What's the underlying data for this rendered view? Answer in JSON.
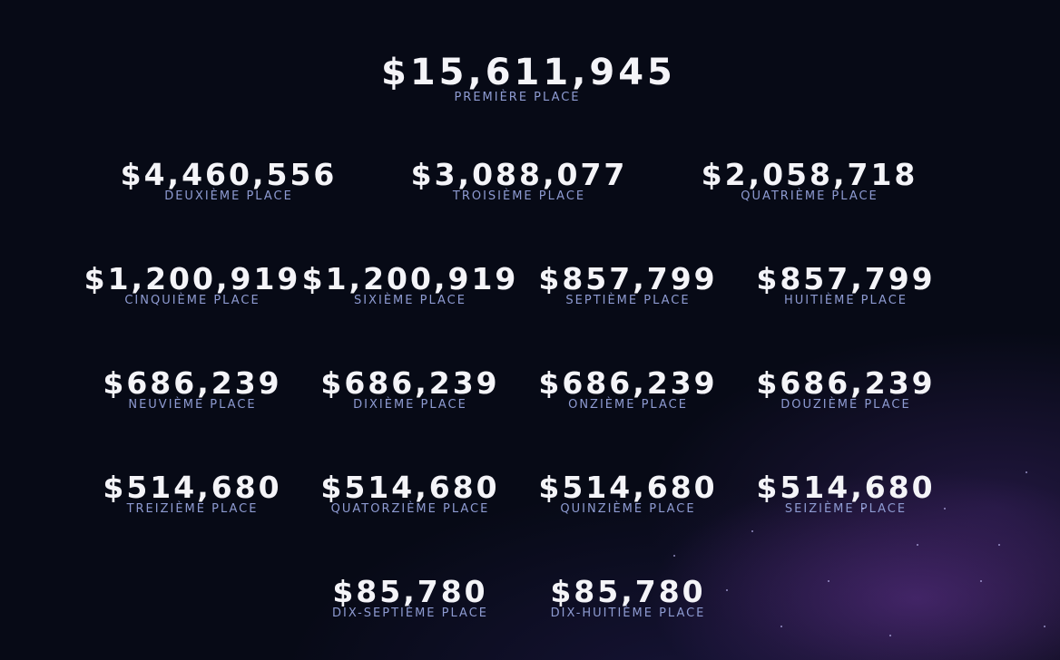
{
  "rows": [
    [
      {
        "amount": "$15,611,945",
        "label": "PREMIÈRE PLACE"
      }
    ],
    [
      {
        "amount": "$4,460,556",
        "label": "DEUXIÈME PLACE"
      },
      {
        "amount": "$3,088,077",
        "label": "TROISIÈME PLACE"
      },
      {
        "amount": "$2,058,718",
        "label": "QUATRIÈME PLACE"
      }
    ],
    [
      {
        "amount": "$1,200,919",
        "label": "CINQUIÈME PLACE"
      },
      {
        "amount": "$1,200,919",
        "label": "SIXIÈME PLACE"
      },
      {
        "amount": "$857,799",
        "label": "SEPTIÈME PLACE"
      },
      {
        "amount": "$857,799",
        "label": "HUITIÈME PLACE"
      }
    ],
    [
      {
        "amount": "$686,239",
        "label": "NEUVIÈME PLACE"
      },
      {
        "amount": "$686,239",
        "label": "DIXIÈME PLACE"
      },
      {
        "amount": "$686,239",
        "label": "ONZIÈME PLACE"
      },
      {
        "amount": "$686,239",
        "label": "DOUZIÈME PLACE"
      }
    ],
    [
      {
        "amount": "$514,680",
        "label": "TREIZIÈME PLACE"
      },
      {
        "amount": "$514,680",
        "label": "QUATORZIÈME PLACE"
      },
      {
        "amount": "$514,680",
        "label": "QUINZIÈME PLACE"
      },
      {
        "amount": "$514,680",
        "label": "SEIZIÈME PLACE"
      }
    ],
    [
      {
        "amount": "$85,780",
        "label": "DIX-SEPTIÈME PLACE"
      },
      {
        "amount": "$85,780",
        "label": "DIX-HUITIÈME PLACE"
      }
    ]
  ]
}
